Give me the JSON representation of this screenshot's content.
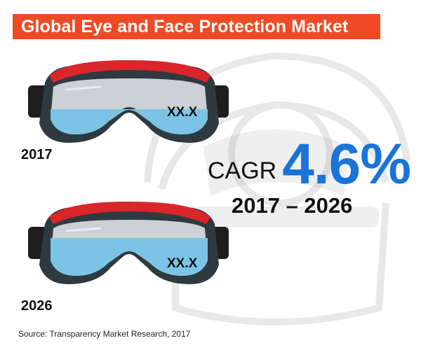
{
  "title": "Global Eye and Face Protection Market",
  "chart_data": {
    "type": "other",
    "title": "Global Eye and Face Protection Market",
    "categories": [
      "2017",
      "2026"
    ],
    "values": [
      "XX.X",
      "XX.X"
    ],
    "cagr": {
      "prefix": "CAGR",
      "value": "4.6%",
      "period": "2017 – 2026"
    }
  },
  "source": "Source: Transparency Market Research, 2017",
  "colors": {
    "title_bar": "#ef4a24",
    "cagr_value": "#1a73d9",
    "strap": "#d8262b",
    "lens_fill": "#7cc4e6"
  },
  "icons": [
    "face-shield-helmet-icon",
    "safety-goggles-icon"
  ]
}
